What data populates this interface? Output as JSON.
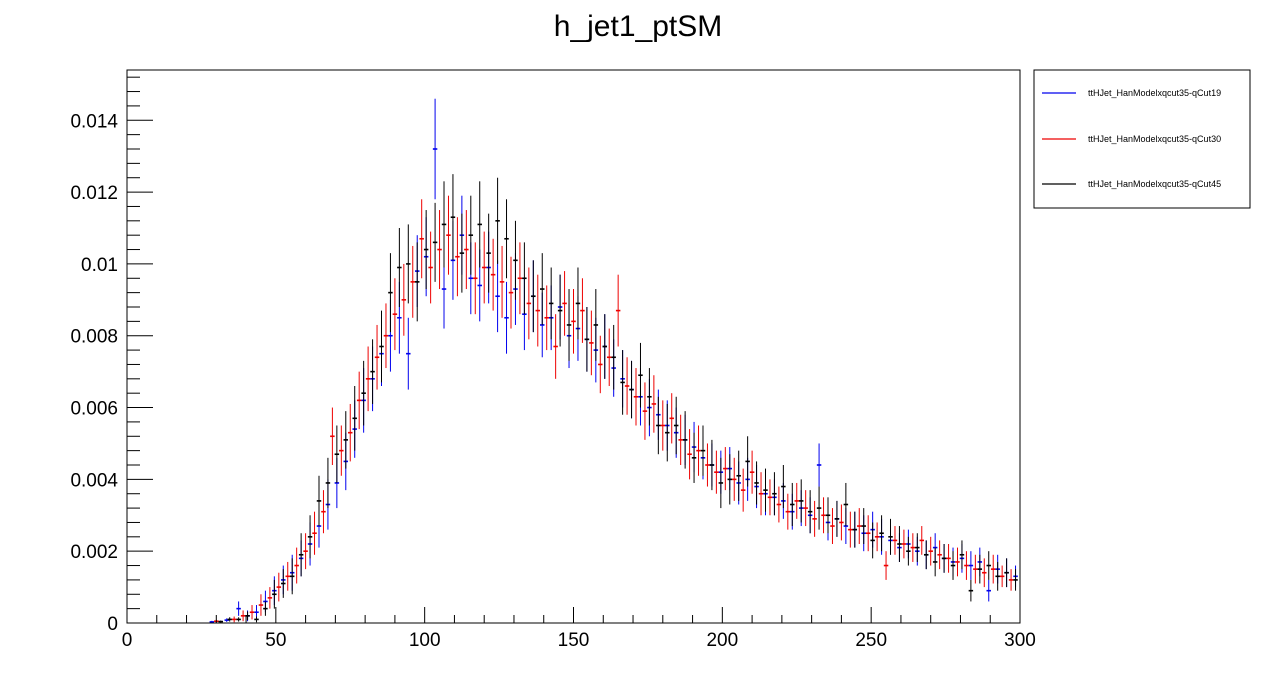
{
  "chart_data": {
    "type": "scatter",
    "title": "h_jet1_ptSM",
    "xlabel": "",
    "ylabel": "",
    "xlim": [
      0,
      300
    ],
    "ylim": [
      0,
      0.0154
    ],
    "x_ticks": [
      0,
      50,
      100,
      150,
      200,
      250,
      300
    ],
    "y_ticks": [
      0,
      0.002,
      0.004,
      0.006,
      0.008,
      0.01,
      0.012,
      0.014
    ],
    "x_tick_labels": [
      "0",
      "50",
      "100",
      "150",
      "200",
      "250",
      "300"
    ],
    "y_tick_labels": [
      "0",
      "0.002",
      "0.004",
      "0.006",
      "0.008",
      "0.01",
      "0.012",
      "0.014"
    ],
    "grid": false,
    "legend_position": "outside-right",
    "bin_width": 1.5,
    "series": [
      {
        "name": "ttHJet_HanModelxqcut35-qCut19",
        "color": "#0000ee",
        "x": [
          28.5,
          33.5,
          37.5,
          40.5,
          43.5,
          46.5,
          49.5,
          52.5,
          55.5,
          58.5,
          61.5,
          64.5,
          67.5,
          70.5,
          73.5,
          76.5,
          79.5,
          82.5,
          85.5,
          88.5,
          91.5,
          94.5,
          97.5,
          100.5,
          103.5,
          106.5,
          109.5,
          112.5,
          115.5,
          118.5,
          121.5,
          124.5,
          127.5,
          130.5,
          133.5,
          136.5,
          139.5,
          142.5,
          145.5,
          148.5,
          151.5,
          154.5,
          157.5,
          160.5,
          163.5,
          166.5,
          169.5,
          172.5,
          175.5,
          178.5,
          181.5,
          184.5,
          187.5,
          190.5,
          193.5,
          196.5,
          199.5,
          202.5,
          205.5,
          208.5,
          211.5,
          214.5,
          217.5,
          220.5,
          223.5,
          226.5,
          229.5,
          232.5,
          235.5,
          238.5,
          241.5,
          244.5,
          247.5,
          250.5,
          253.5,
          256.5,
          259.5,
          262.5,
          265.5,
          268.5,
          271.5,
          274.5,
          277.5,
          280.5,
          283.5,
          286.5,
          289.5,
          292.5,
          295.5,
          298.5
        ],
        "y": [
          3e-05,
          8e-05,
          0.0004,
          0.0002,
          0.0003,
          0.0006,
          0.0009,
          0.0012,
          0.0014,
          0.0018,
          0.0022,
          0.0027,
          0.0033,
          0.0039,
          0.0045,
          0.0054,
          0.0062,
          0.0068,
          0.0075,
          0.008,
          0.0085,
          0.0075,
          0.0098,
          0.0102,
          0.0132,
          0.0093,
          0.0101,
          0.0108,
          0.0096,
          0.0094,
          0.0099,
          0.0091,
          0.0085,
          0.0093,
          0.0086,
          0.0091,
          0.0083,
          0.0085,
          0.0088,
          0.008,
          0.0082,
          0.0079,
          0.0076,
          0.0077,
          0.0071,
          0.0068,
          0.0065,
          0.0063,
          0.006,
          0.0058,
          0.0055,
          0.0053,
          0.0051,
          0.0049,
          0.0046,
          0.0044,
          0.0042,
          0.0043,
          0.0039,
          0.004,
          0.0038,
          0.0036,
          0.0035,
          0.0034,
          0.0031,
          0.0032,
          0.003,
          0.0044,
          0.0028,
          0.0029,
          0.0027,
          0.0026,
          0.0025,
          0.0026,
          0.0024,
          0.0023,
          0.0021,
          0.0022,
          0.002,
          0.0019,
          0.0021,
          0.0018,
          0.0017,
          0.0018,
          0.0016,
          0.0017,
          0.0009,
          0.0015,
          0.0014,
          0.0013
        ],
        "yerr": [
          3e-05,
          5e-05,
          0.0002,
          0.00015,
          0.0002,
          0.0003,
          0.0004,
          0.0004,
          0.0005,
          0.0005,
          0.0006,
          0.0006,
          0.0007,
          0.0007,
          0.0008,
          0.0008,
          0.0009,
          0.0009,
          0.0009,
          0.001,
          0.001,
          0.001,
          0.001,
          0.0011,
          0.0014,
          0.0011,
          0.0011,
          0.0011,
          0.001,
          0.001,
          0.001,
          0.001,
          0.001,
          0.001,
          0.001,
          0.001,
          0.0009,
          0.0009,
          0.0009,
          0.0009,
          0.0009,
          0.0009,
          0.0009,
          0.0009,
          0.0008,
          0.0008,
          0.0008,
          0.0008,
          0.0008,
          0.0007,
          0.0007,
          0.0007,
          0.0007,
          0.0007,
          0.0006,
          0.0006,
          0.0006,
          0.0006,
          0.0006,
          0.0006,
          0.0006,
          0.0006,
          0.0005,
          0.0005,
          0.0005,
          0.0005,
          0.0005,
          0.0006,
          0.0005,
          0.0005,
          0.0005,
          0.0005,
          0.0005,
          0.0005,
          0.0005,
          0.0004,
          0.0004,
          0.0004,
          0.0004,
          0.0004,
          0.0004,
          0.0004,
          0.0004,
          0.0004,
          0.0004,
          0.0004,
          0.0003,
          0.0004,
          0.0004,
          0.0003
        ]
      },
      {
        "name": "ttHJet_HanModelxqcut35-qCut30",
        "color": "#ee0000",
        "x": [
          30,
          36,
          39,
          42,
          45,
          48,
          51,
          54,
          57,
          60,
          63,
          66,
          69,
          72,
          75,
          78,
          81,
          84,
          87,
          90,
          93,
          96,
          99,
          102,
          105,
          108,
          111,
          114,
          117,
          120,
          123,
          126,
          129,
          132,
          135,
          138,
          141,
          144,
          147,
          150,
          153,
          156,
          159,
          162,
          165,
          168,
          171,
          174,
          177,
          180,
          183,
          186,
          189,
          192,
          195,
          198,
          201,
          204,
          207,
          210,
          213,
          216,
          219,
          222,
          225,
          228,
          231,
          234,
          237,
          240,
          243,
          246,
          249,
          252,
          255,
          258,
          261,
          264,
          267,
          270,
          273,
          276,
          279,
          282,
          285,
          288,
          291,
          294,
          297
        ],
        "y": [
          5e-05,
          0.0001,
          0.0002,
          0.0003,
          0.0005,
          0.0007,
          0.001,
          0.0013,
          0.0016,
          0.002,
          0.0025,
          0.0031,
          0.0052,
          0.0048,
          0.0053,
          0.0062,
          0.0068,
          0.0074,
          0.008,
          0.0086,
          0.009,
          0.0095,
          0.0107,
          0.0099,
          0.0104,
          0.0108,
          0.0102,
          0.0104,
          0.0096,
          0.0099,
          0.0097,
          0.0095,
          0.0092,
          0.0096,
          0.0089,
          0.0087,
          0.0085,
          0.0077,
          0.0089,
          0.0084,
          0.0087,
          0.0078,
          0.0072,
          0.0074,
          0.0087,
          0.0066,
          0.0063,
          0.0059,
          0.0061,
          0.0055,
          0.0057,
          0.0051,
          0.0047,
          0.0048,
          0.0044,
          0.0042,
          0.0043,
          0.004,
          0.0037,
          0.0042,
          0.0036,
          0.0035,
          0.0033,
          0.0031,
          0.0034,
          0.0032,
          0.0029,
          0.003,
          0.0027,
          0.0028,
          0.0026,
          0.0027,
          0.0025,
          0.0024,
          0.0016,
          0.0023,
          0.0022,
          0.0021,
          0.0023,
          0.002,
          0.0019,
          0.0018,
          0.0017,
          0.0016,
          0.0015,
          0.0014,
          0.0015,
          0.0013,
          0.0012
        ],
        "yerr": [
          4e-05,
          8e-05,
          0.00015,
          0.0002,
          0.0003,
          0.0003,
          0.0004,
          0.0004,
          0.0005,
          0.0005,
          0.0006,
          0.0006,
          0.0008,
          0.0007,
          0.0008,
          0.0008,
          0.0009,
          0.0009,
          0.0009,
          0.001,
          0.001,
          0.001,
          0.0011,
          0.001,
          0.0011,
          0.0011,
          0.0011,
          0.0011,
          0.001,
          0.001,
          0.001,
          0.001,
          0.001,
          0.001,
          0.001,
          0.001,
          0.0009,
          0.0009,
          0.0009,
          0.0009,
          0.0009,
          0.0009,
          0.0008,
          0.0008,
          0.001,
          0.0008,
          0.0008,
          0.0008,
          0.0008,
          0.0007,
          0.0007,
          0.0007,
          0.0007,
          0.0007,
          0.0006,
          0.0006,
          0.0006,
          0.0006,
          0.0006,
          0.0006,
          0.0006,
          0.0005,
          0.0005,
          0.0005,
          0.0005,
          0.0005,
          0.0005,
          0.0005,
          0.0005,
          0.0005,
          0.0005,
          0.0005,
          0.0005,
          0.0004,
          0.0004,
          0.0004,
          0.0004,
          0.0004,
          0.0004,
          0.0004,
          0.0004,
          0.0004,
          0.0004,
          0.0004,
          0.0004,
          0.0004,
          0.0004,
          0.0003,
          0.0003
        ]
      },
      {
        "name": "ttHJet_HanModelxqcut35-qCut45",
        "color": "#000000",
        "x": [
          31.5,
          34.5,
          37.5,
          40.5,
          43.5,
          46.5,
          49.5,
          52.5,
          55.5,
          58.5,
          61.5,
          64.5,
          67.5,
          70.5,
          73.5,
          76.5,
          79.5,
          82.5,
          85.5,
          88.5,
          91.5,
          94.5,
          97.5,
          100.5,
          103.5,
          106.5,
          109.5,
          112.5,
          115.5,
          118.5,
          121.5,
          124.5,
          127.5,
          130.5,
          133.5,
          136.5,
          139.5,
          142.5,
          145.5,
          148.5,
          151.5,
          154.5,
          157.5,
          160.5,
          163.5,
          166.5,
          169.5,
          172.5,
          175.5,
          178.5,
          181.5,
          184.5,
          187.5,
          190.5,
          193.5,
          196.5,
          199.5,
          202.5,
          205.5,
          208.5,
          211.5,
          214.5,
          217.5,
          220.5,
          223.5,
          226.5,
          229.5,
          232.5,
          235.5,
          238.5,
          241.5,
          244.5,
          247.5,
          250.5,
          253.5,
          256.5,
          259.5,
          262.5,
          265.5,
          268.5,
          271.5,
          274.5,
          277.5,
          280.5,
          283.5,
          286.5,
          289.5,
          292.5,
          295.5,
          298.5
        ],
        "y": [
          4e-05,
          0.0001,
          0.0001,
          0.0002,
          0.0001,
          0.0004,
          0.0008,
          0.0011,
          0.0013,
          0.0019,
          0.0024,
          0.0034,
          0.0039,
          0.0047,
          0.0051,
          0.0057,
          0.0064,
          0.007,
          0.0077,
          0.0092,
          0.0099,
          0.01,
          0.0095,
          0.0104,
          0.0106,
          0.0111,
          0.0113,
          0.0103,
          0.0108,
          0.0111,
          0.0103,
          0.0112,
          0.0107,
          0.0101,
          0.0096,
          0.0091,
          0.0093,
          0.0089,
          0.0087,
          0.0083,
          0.0089,
          0.0079,
          0.0083,
          0.0077,
          0.0074,
          0.0067,
          0.0065,
          0.0069,
          0.0063,
          0.0055,
          0.0053,
          0.0055,
          0.0051,
          0.0046,
          0.0048,
          0.0044,
          0.0039,
          0.004,
          0.0041,
          0.0045,
          0.0039,
          0.0037,
          0.0036,
          0.0038,
          0.0033,
          0.0034,
          0.0031,
          0.0032,
          0.003,
          0.0029,
          0.0033,
          0.0026,
          0.0027,
          0.0023,
          0.0025,
          0.0024,
          0.0022,
          0.002,
          0.0021,
          0.0019,
          0.0017,
          0.0018,
          0.0016,
          0.0019,
          0.0009,
          0.0015,
          0.0016,
          0.0013,
          0.0014,
          0.0012
        ],
        "yerr": [
          3e-05,
          6e-05,
          6e-05,
          0.00012,
          8e-05,
          0.0002,
          0.0004,
          0.0004,
          0.0005,
          0.0006,
          0.0006,
          0.0007,
          0.0007,
          0.0008,
          0.0008,
          0.0009,
          0.0009,
          0.0009,
          0.001,
          0.0011,
          0.0011,
          0.0011,
          0.0011,
          0.0011,
          0.0011,
          0.0012,
          0.0012,
          0.0011,
          0.0011,
          0.0012,
          0.0011,
          0.0012,
          0.0011,
          0.0011,
          0.001,
          0.001,
          0.001,
          0.001,
          0.001,
          0.001,
          0.001,
          0.0009,
          0.001,
          0.0009,
          0.0009,
          0.0009,
          0.0008,
          0.0009,
          0.0008,
          0.0008,
          0.0008,
          0.0008,
          0.0008,
          0.0007,
          0.0007,
          0.0007,
          0.0007,
          0.0007,
          0.0007,
          0.0007,
          0.0006,
          0.0006,
          0.0006,
          0.0006,
          0.0006,
          0.0006,
          0.0006,
          0.0006,
          0.0005,
          0.0005,
          0.0006,
          0.0005,
          0.0005,
          0.0005,
          0.0005,
          0.0005,
          0.0005,
          0.0004,
          0.0004,
          0.0004,
          0.0004,
          0.0004,
          0.0004,
          0.0004,
          0.0003,
          0.0004,
          0.0004,
          0.0004,
          0.0004,
          0.0003
        ]
      }
    ]
  }
}
